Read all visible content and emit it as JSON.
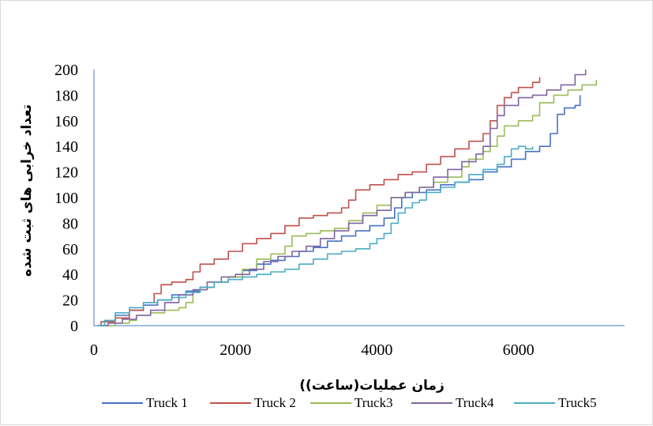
{
  "chart_data": {
    "type": "line",
    "title": "",
    "xlabel": "زمان عملیات(ساعت))",
    "ylabel": "تعداد خرابی های ثبت شده",
    "xlim": [
      0,
      7500
    ],
    "ylim": [
      0,
      200
    ],
    "x_ticks": [
      0,
      2000,
      4000,
      6000
    ],
    "y_ticks": [
      0,
      20,
      40,
      60,
      80,
      100,
      120,
      140,
      160,
      180,
      200
    ],
    "grid": false,
    "legend_position": "bottom",
    "series": [
      {
        "name": "Truck 1",
        "color": "#4472C4",
        "points": [
          [
            50,
            0
          ],
          [
            150,
            4
          ],
          [
            300,
            8
          ],
          [
            500,
            12
          ],
          [
            700,
            16
          ],
          [
            900,
            20
          ],
          [
            1100,
            24
          ],
          [
            1300,
            27
          ],
          [
            1500,
            30
          ],
          [
            1700,
            34
          ],
          [
            1900,
            38
          ],
          [
            2100,
            43
          ],
          [
            2300,
            48
          ],
          [
            2500,
            51
          ],
          [
            2700,
            54
          ],
          [
            2900,
            58
          ],
          [
            3100,
            61
          ],
          [
            3300,
            66
          ],
          [
            3500,
            70
          ],
          [
            3700,
            74
          ],
          [
            3900,
            78
          ],
          [
            4100,
            84
          ],
          [
            4250,
            92
          ],
          [
            4350,
            100
          ],
          [
            4500,
            104
          ],
          [
            4700,
            106
          ],
          [
            4900,
            110
          ],
          [
            5100,
            112
          ],
          [
            5300,
            114
          ],
          [
            5500,
            120
          ],
          [
            5700,
            124
          ],
          [
            5900,
            130
          ],
          [
            6100,
            136
          ],
          [
            6300,
            140
          ],
          [
            6450,
            150
          ],
          [
            6550,
            165
          ],
          [
            6650,
            170
          ],
          [
            6800,
            172
          ],
          [
            6870,
            180
          ]
        ]
      },
      {
        "name": "Truck 2",
        "color": "#C0504D",
        "points": [
          [
            50,
            0
          ],
          [
            100,
            3
          ],
          [
            300,
            6
          ],
          [
            500,
            12
          ],
          [
            700,
            18
          ],
          [
            850,
            25
          ],
          [
            950,
            32
          ],
          [
            1100,
            34
          ],
          [
            1300,
            36
          ],
          [
            1400,
            42
          ],
          [
            1500,
            48
          ],
          [
            1700,
            52
          ],
          [
            1900,
            58
          ],
          [
            2100,
            64
          ],
          [
            2300,
            68
          ],
          [
            2500,
            72
          ],
          [
            2700,
            78
          ],
          [
            2900,
            84
          ],
          [
            3100,
            86
          ],
          [
            3300,
            88
          ],
          [
            3500,
            92
          ],
          [
            3600,
            98
          ],
          [
            3700,
            106
          ],
          [
            3900,
            110
          ],
          [
            4100,
            114
          ],
          [
            4300,
            118
          ],
          [
            4500,
            120
          ],
          [
            4700,
            126
          ],
          [
            4900,
            132
          ],
          [
            5100,
            138
          ],
          [
            5300,
            144
          ],
          [
            5500,
            150
          ],
          [
            5600,
            160
          ],
          [
            5700,
            172
          ],
          [
            5800,
            178
          ],
          [
            5900,
            182
          ],
          [
            6000,
            186
          ],
          [
            6200,
            190
          ],
          [
            6300,
            194
          ]
        ]
      },
      {
        "name": "Truck3",
        "color": "#9BBB59",
        "points": [
          [
            50,
            0
          ],
          [
            300,
            2
          ],
          [
            500,
            4
          ],
          [
            600,
            8
          ],
          [
            800,
            10
          ],
          [
            1000,
            12
          ],
          [
            1200,
            14
          ],
          [
            1300,
            18
          ],
          [
            1400,
            26
          ],
          [
            1500,
            30
          ],
          [
            1700,
            34
          ],
          [
            1900,
            38
          ],
          [
            2100,
            44
          ],
          [
            2300,
            52
          ],
          [
            2500,
            56
          ],
          [
            2700,
            62
          ],
          [
            2800,
            70
          ],
          [
            3000,
            72
          ],
          [
            3200,
            74
          ],
          [
            3400,
            76
          ],
          [
            3600,
            82
          ],
          [
            3800,
            88
          ],
          [
            4000,
            94
          ],
          [
            4200,
            100
          ],
          [
            4400,
            104
          ],
          [
            4600,
            108
          ],
          [
            4800,
            112
          ],
          [
            5000,
            116
          ],
          [
            5200,
            124
          ],
          [
            5300,
            130
          ],
          [
            5500,
            136
          ],
          [
            5600,
            140
          ],
          [
            5700,
            148
          ],
          [
            5800,
            156
          ],
          [
            6000,
            160
          ],
          [
            6200,
            164
          ],
          [
            6300,
            174
          ],
          [
            6500,
            180
          ],
          [
            6700,
            184
          ],
          [
            6900,
            188
          ],
          [
            7100,
            192
          ]
        ]
      },
      {
        "name": "Truck4",
        "color": "#8064A2",
        "points": [
          [
            50,
            0
          ],
          [
            200,
            2
          ],
          [
            400,
            5
          ],
          [
            600,
            8
          ],
          [
            800,
            12
          ],
          [
            1000,
            18
          ],
          [
            1200,
            24
          ],
          [
            1400,
            28
          ],
          [
            1600,
            34
          ],
          [
            1800,
            38
          ],
          [
            2000,
            40
          ],
          [
            2200,
            44
          ],
          [
            2400,
            50
          ],
          [
            2600,
            54
          ],
          [
            2800,
            58
          ],
          [
            3000,
            62
          ],
          [
            3200,
            68
          ],
          [
            3400,
            74
          ],
          [
            3600,
            80
          ],
          [
            3800,
            86
          ],
          [
            4000,
            90
          ],
          [
            4200,
            100
          ],
          [
            4400,
            104
          ],
          [
            4600,
            108
          ],
          [
            4800,
            116
          ],
          [
            5000,
            122
          ],
          [
            5200,
            128
          ],
          [
            5400,
            134
          ],
          [
            5500,
            140
          ],
          [
            5600,
            154
          ],
          [
            5700,
            164
          ],
          [
            5800,
            172
          ],
          [
            6000,
            178
          ],
          [
            6200,
            180
          ],
          [
            6400,
            184
          ],
          [
            6600,
            188
          ],
          [
            6800,
            196
          ],
          [
            6950,
            200
          ]
        ]
      },
      {
        "name": "Truck5",
        "color": "#4BACC6",
        "points": [
          [
            50,
            0
          ],
          [
            150,
            4
          ],
          [
            300,
            10
          ],
          [
            500,
            14
          ],
          [
            700,
            18
          ],
          [
            900,
            20
          ],
          [
            1100,
            22
          ],
          [
            1300,
            26
          ],
          [
            1500,
            30
          ],
          [
            1700,
            34
          ],
          [
            1900,
            36
          ],
          [
            2100,
            38
          ],
          [
            2300,
            40
          ],
          [
            2500,
            42
          ],
          [
            2700,
            44
          ],
          [
            2900,
            48
          ],
          [
            3100,
            52
          ],
          [
            3300,
            56
          ],
          [
            3500,
            58
          ],
          [
            3700,
            60
          ],
          [
            3900,
            64
          ],
          [
            4000,
            68
          ],
          [
            4100,
            72
          ],
          [
            4200,
            80
          ],
          [
            4300,
            88
          ],
          [
            4400,
            92
          ],
          [
            4500,
            96
          ],
          [
            4600,
            98
          ],
          [
            4700,
            104
          ],
          [
            4900,
            108
          ],
          [
            5100,
            112
          ],
          [
            5300,
            118
          ],
          [
            5500,
            122
          ],
          [
            5700,
            126
          ],
          [
            5800,
            132
          ],
          [
            5900,
            138
          ],
          [
            6000,
            140
          ],
          [
            6100,
            138
          ],
          [
            6200,
            140
          ]
        ]
      }
    ]
  }
}
